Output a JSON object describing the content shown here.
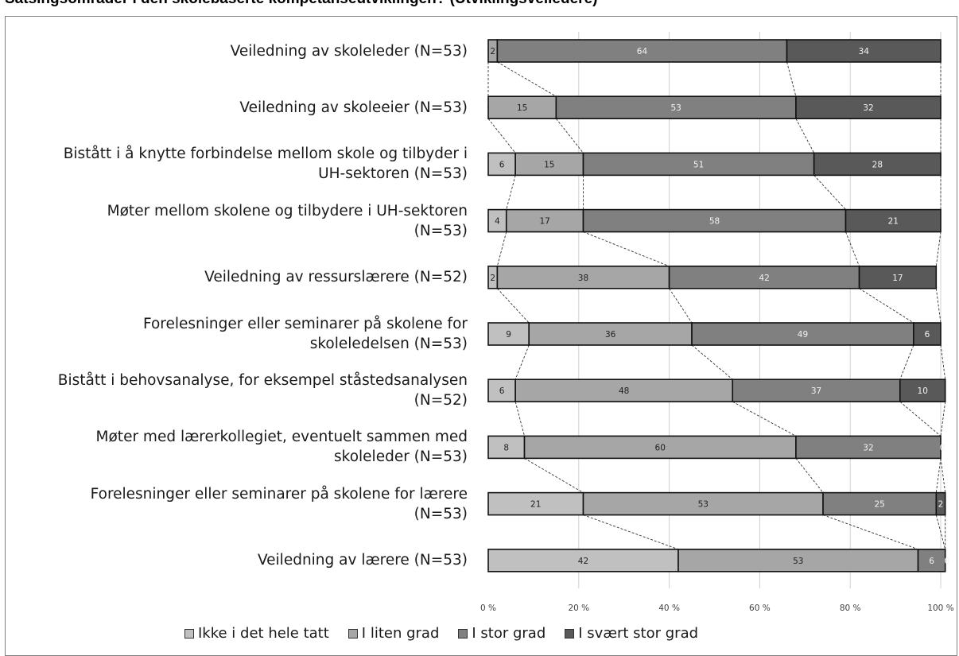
{
  "title": "Satsingsområder i den skolebaserte kompetanseutviklingen? (Utviklingsveiledere)",
  "chart_data": {
    "type": "bar",
    "orientation": "horizontal",
    "stacked": "100%",
    "categories": [
      "Veiledning av skoleleder (N=53)",
      "Veiledning av skoleeier (N=53)",
      "Bistått i å knytte forbindelse mellom skole og tilbyder i UH-sektoren (N=53)",
      "Møter mellom skolene og tilbydere i UH-sektoren (N=53)",
      "Veiledning av ressurslærere (N=52)",
      "Forelesninger eller seminarer på skolene for skoleledelsen (N=53)",
      "Bistått i behovsanalyse, for eksempel ståstedsanalysen (N=52)",
      "Møter med lærerkollegiet, eventuelt sammen med skoleleder (N=53)",
      "Forelesninger eller seminarer på skolene for lærere (N=53)",
      "Veiledning av lærere (N=53)"
    ],
    "category_lines": [
      [
        "Veiledning av skoleleder (N=53)"
      ],
      [
        "Veiledning av skoleeier (N=53)"
      ],
      [
        "Bistått i å knytte forbindelse mellom skole og tilbyder i",
        "UH-sektoren (N=53)"
      ],
      [
        "Møter mellom skolene og tilbydere i UH-sektoren",
        "(N=53)"
      ],
      [
        "Veiledning av ressurslærere (N=52)"
      ],
      [
        "Forelesninger eller seminarer på skolene for",
        "skoleledelsen (N=53)"
      ],
      [
        "Bistått i behovsanalyse, for eksempel ståstedsanalysen",
        "(N=52)"
      ],
      [
        "Møter med lærerkollegiet, eventuelt sammen med",
        "skoleleder (N=53)"
      ],
      [
        "Forelesninger eller seminarer på skolene for lærere",
        "(N=53)"
      ],
      [
        "Veiledning av lærere (N=53)"
      ]
    ],
    "series": [
      {
        "name": "Ikke i det hele tatt",
        "color": "#c0c0c0",
        "values": [
          0,
          0,
          6,
          4,
          2,
          9,
          6,
          8,
          21,
          42
        ]
      },
      {
        "name": "I liten grad",
        "color": "#a6a6a6",
        "values": [
          2,
          15,
          15,
          17,
          38,
          36,
          48,
          60,
          53,
          53
        ]
      },
      {
        "name": "I stor grad",
        "color": "#808080",
        "values": [
          64,
          53,
          51,
          58,
          42,
          49,
          37,
          32,
          25,
          6
        ]
      },
      {
        "name": "I svært stor grad",
        "color": "#595959",
        "values": [
          34,
          32,
          28,
          21,
          17,
          6,
          10,
          0,
          2,
          0
        ]
      }
    ],
    "data_labels": [
      [
        "0",
        "2",
        "64",
        "34"
      ],
      [
        "0",
        "15",
        "53",
        "32"
      ],
      [
        "6",
        "15",
        "51",
        "28"
      ],
      [
        "4",
        "17",
        "58",
        "21"
      ],
      [
        "2",
        "38",
        "42",
        "17"
      ],
      [
        "9",
        "36",
        "49",
        "6"
      ],
      [
        "6",
        "48",
        "37",
        "10"
      ],
      [
        "8",
        "60",
        "32",
        "0"
      ],
      [
        "21",
        "53",
        "25",
        "2"
      ],
      [
        "42",
        "53",
        "6",
        "0"
      ]
    ],
    "xlim": [
      0,
      100
    ],
    "xticks": [
      0,
      20,
      40,
      60,
      80,
      100
    ],
    "xtick_labels": [
      "0 %",
      "20 %",
      "40 %",
      "60 %",
      "80 %",
      "100 %"
    ],
    "grid": "vertical",
    "series_lines": true,
    "legend_position": "bottom"
  }
}
